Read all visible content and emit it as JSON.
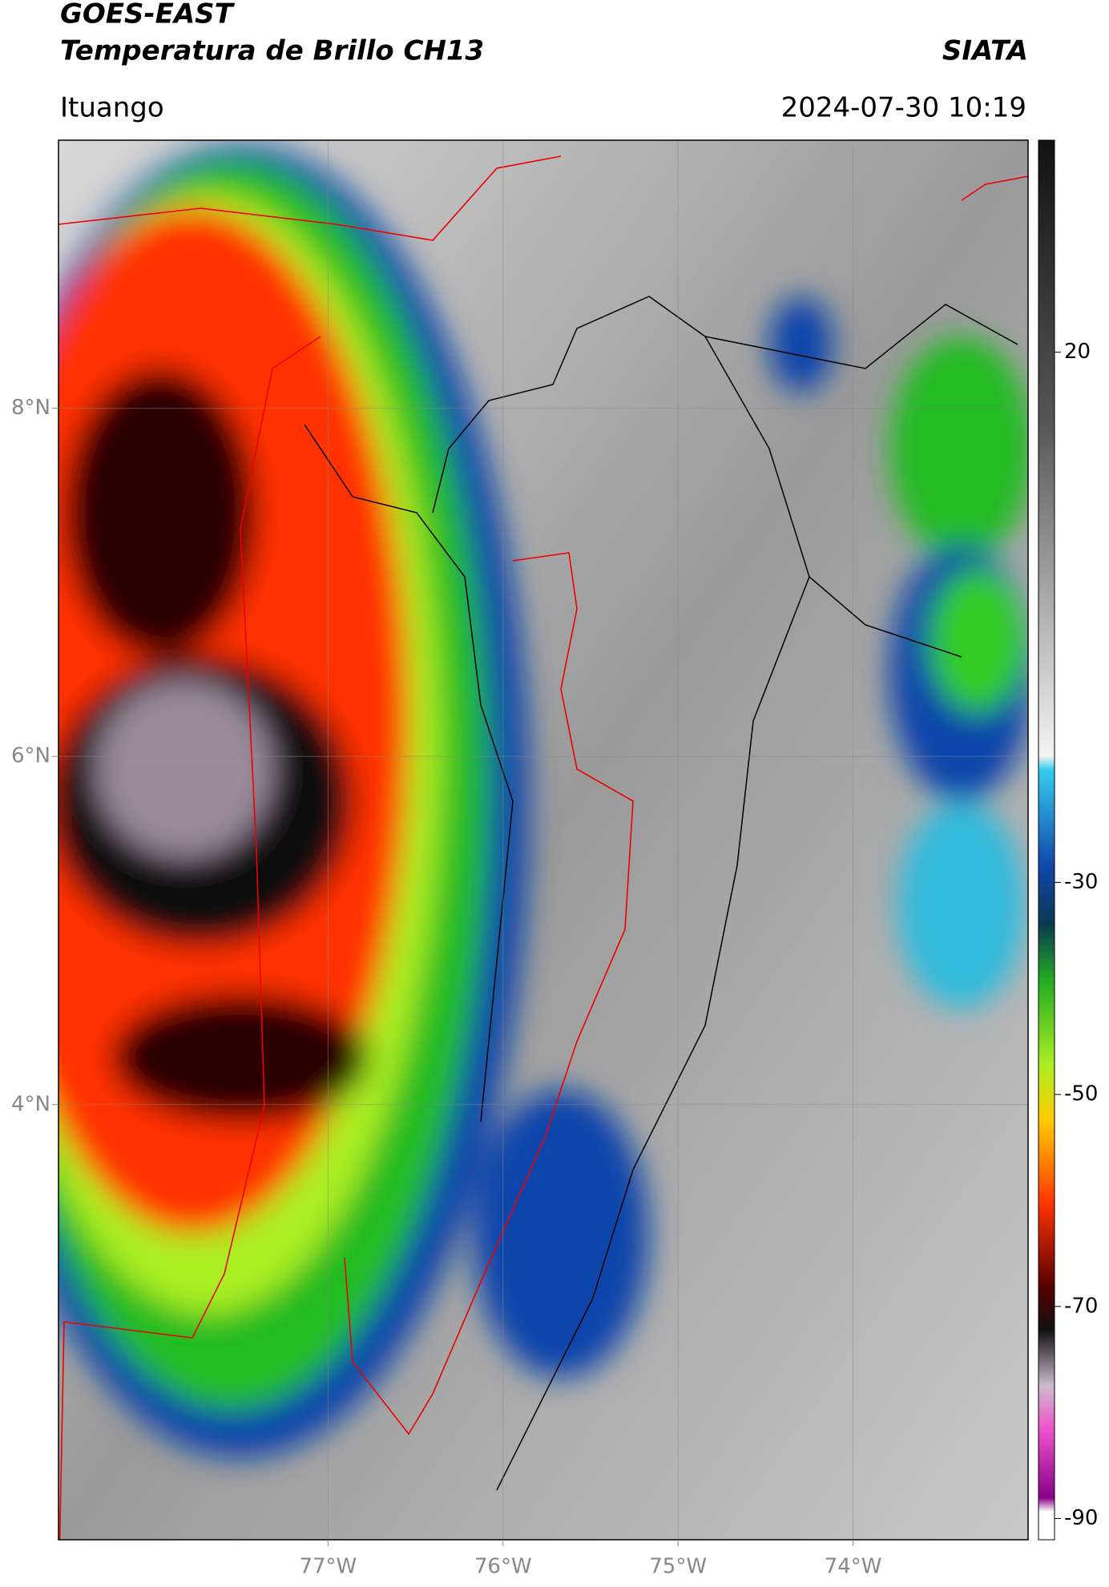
{
  "chart_data": {
    "type": "map",
    "title": "GOES-EAST",
    "subtitle": "Temperatura de Brillo CH13",
    "source": "SIATA",
    "location": "Ituango",
    "datetime": "2024-07-30 10:19",
    "xlim": [
      -78.54,
      -73.0
    ],
    "ylim": [
      1.5,
      9.54
    ],
    "xticks": [
      {
        "value": -77,
        "label": "77°W"
      },
      {
        "value": -76,
        "label": "76°W"
      },
      {
        "value": -75,
        "label": "75°W"
      },
      {
        "value": -74,
        "label": "74°W"
      }
    ],
    "yticks": [
      {
        "value": 8,
        "label": "8°N"
      },
      {
        "value": 6,
        "label": "6°N"
      },
      {
        "value": 4,
        "label": "4°N"
      }
    ],
    "clim": [
      -92,
      40
    ],
    "cticks": [
      20,
      -30,
      -50,
      -70,
      -90
    ],
    "grid": true
  }
}
